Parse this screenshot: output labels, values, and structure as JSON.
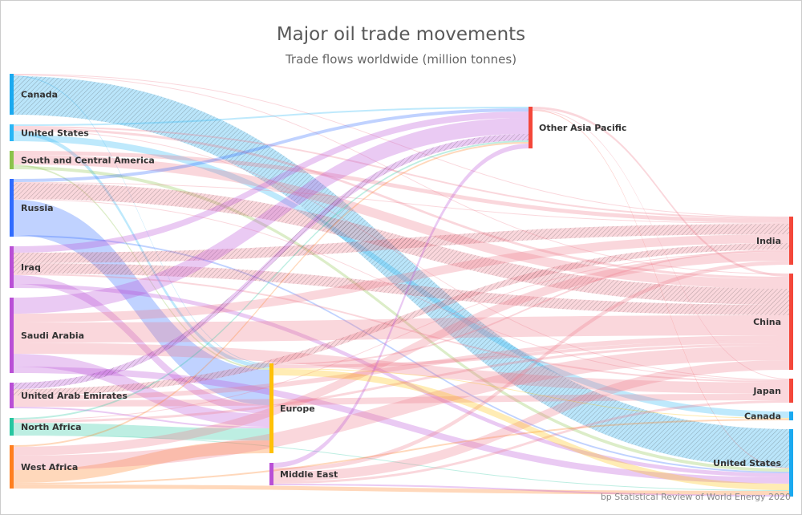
{
  "chart_data": {
    "type": "sankey",
    "title": "Major oil trade movements",
    "subtitle": "Trade flows worldwide (million tonnes)",
    "credit": "bp Statistical Review of World Energy 2020",
    "nodes": [
      {
        "id": "src_canada",
        "label": "Canada",
        "column": "left",
        "color": "#1aa9f0"
      },
      {
        "id": "src_us",
        "label": "United States",
        "column": "left",
        "color": "#29b6f6"
      },
      {
        "id": "src_sca",
        "label": "South and Central America",
        "column": "left",
        "color": "#8bc34a"
      },
      {
        "id": "src_russia",
        "label": "Russia",
        "column": "left",
        "color": "#2f6bff"
      },
      {
        "id": "src_iraq",
        "label": "Iraq",
        "column": "left",
        "color": "#b94fd6"
      },
      {
        "id": "src_saudi",
        "label": "Saudi Arabia",
        "column": "left",
        "color": "#b94fd6"
      },
      {
        "id": "src_uae",
        "label": "United Arab Emirates",
        "column": "left",
        "color": "#b94fd6"
      },
      {
        "id": "src_nafrica",
        "label": "North Africa",
        "column": "left",
        "color": "#26c6a0"
      },
      {
        "id": "src_wafrica",
        "label": "West Africa",
        "column": "left",
        "color": "#ff7f1f"
      },
      {
        "id": "europe",
        "label": "Europe",
        "column": "middle",
        "color": "#ffc107"
      },
      {
        "id": "mideast",
        "label": "Middle East",
        "column": "middle",
        "color": "#b94fd6"
      },
      {
        "id": "oap",
        "label": "Other Asia Pacific",
        "column": "middle-right",
        "color": "#f4473a"
      },
      {
        "id": "dst_india",
        "label": "India",
        "column": "right",
        "color": "#f4473a"
      },
      {
        "id": "dst_china",
        "label": "China",
        "column": "right",
        "color": "#f4473a"
      },
      {
        "id": "dst_japan",
        "label": "Japan",
        "column": "right",
        "color": "#f4473a"
      },
      {
        "id": "dst_canada",
        "label": "Canada",
        "column": "right",
        "color": "#1aa9f0"
      },
      {
        "id": "dst_us",
        "label": "United States",
        "column": "right",
        "color": "#1aa9f0"
      }
    ],
    "links": [
      [
        "src_canada",
        "dst_us",
        192,
        true
      ],
      [
        "src_canada",
        "dst_china",
        4,
        false
      ],
      [
        "src_canada",
        "europe",
        4,
        false
      ],
      [
        "src_canada",
        "dst_india",
        4,
        false
      ],
      [
        "src_us",
        "dst_canada",
        32,
        false
      ],
      [
        "src_us",
        "europe",
        20,
        false
      ],
      [
        "src_us",
        "dst_china",
        12,
        false
      ],
      [
        "src_us",
        "dst_india",
        8,
        false
      ],
      [
        "src_us",
        "oap",
        8,
        false
      ],
      [
        "src_us",
        "dst_japan",
        4,
        false
      ],
      [
        "src_sca",
        "dst_china",
        48,
        false
      ],
      [
        "src_sca",
        "dst_india",
        20,
        false
      ],
      [
        "src_sca",
        "dst_us",
        16,
        false
      ],
      [
        "src_sca",
        "europe",
        8,
        false
      ],
      [
        "src_russia",
        "dst_china",
        80,
        true
      ],
      [
        "src_russia",
        "europe",
        176,
        false
      ],
      [
        "src_russia",
        "oap",
        16,
        false
      ],
      [
        "src_russia",
        "dst_us",
        8,
        false
      ],
      [
        "src_russia",
        "dst_india",
        4,
        false
      ],
      [
        "src_russia",
        "dst_japan",
        4,
        false
      ],
      [
        "src_iraq",
        "dst_india",
        52,
        true
      ],
      [
        "src_iraq",
        "dst_china",
        52,
        true
      ],
      [
        "src_iraq",
        "oap",
        32,
        false
      ],
      [
        "src_iraq",
        "europe",
        44,
        false
      ],
      [
        "src_iraq",
        "dst_us",
        20,
        false
      ],
      [
        "src_iraq",
        "dst_japan",
        8,
        false
      ],
      [
        "src_saudi",
        "oap",
        80,
        false
      ],
      [
        "src_saudi",
        "dst_china",
        100,
        false
      ],
      [
        "src_saudi",
        "dst_japan",
        56,
        false
      ],
      [
        "src_saudi",
        "dst_india",
        44,
        false
      ],
      [
        "src_saudi",
        "europe",
        64,
        false
      ],
      [
        "src_saudi",
        "dst_us",
        32,
        false
      ],
      [
        "src_uae",
        "oap",
        32,
        true
      ],
      [
        "src_uae",
        "dst_india",
        32,
        true
      ],
      [
        "src_uae",
        "dst_japan",
        32,
        false
      ],
      [
        "src_uae",
        "dst_china",
        24,
        false
      ],
      [
        "src_uae",
        "europe",
        8,
        false
      ],
      [
        "src_nafrica",
        "europe",
        60,
        false
      ],
      [
        "src_nafrica",
        "dst_china",
        12,
        false
      ],
      [
        "src_nafrica",
        "oap",
        8,
        false
      ],
      [
        "src_nafrica",
        "dst_us",
        4,
        false
      ],
      [
        "src_nafrica",
        "dst_india",
        4,
        false
      ],
      [
        "src_wafrica",
        "europe",
        64,
        false
      ],
      [
        "src_wafrica",
        "dst_china",
        72,
        false
      ],
      [
        "src_wafrica",
        "dst_india",
        44,
        false
      ],
      [
        "src_wafrica",
        "dst_us",
        20,
        false
      ],
      [
        "src_wafrica",
        "oap",
        8,
        false
      ],
      [
        "src_wafrica",
        "dst_canada",
        8,
        false
      ],
      [
        "mideast",
        "oap",
        24,
        false
      ],
      [
        "mideast",
        "dst_china",
        48,
        false
      ],
      [
        "mideast",
        "dst_india",
        20,
        false
      ],
      [
        "mideast",
        "dst_japan",
        12,
        false
      ],
      [
        "mideast",
        "dst_us",
        8,
        false
      ],
      [
        "europe",
        "dst_us",
        32,
        false
      ],
      [
        "europe",
        "dst_china",
        16,
        false
      ],
      [
        "europe",
        "dst_india",
        8,
        false
      ],
      [
        "europe",
        "dst_canada",
        4,
        false
      ],
      [
        "oap",
        "dst_china",
        12,
        false
      ],
      [
        "oap",
        "dst_japan",
        4,
        false
      ],
      [
        "oap",
        "dst_us",
        4,
        false
      ]
    ]
  }
}
